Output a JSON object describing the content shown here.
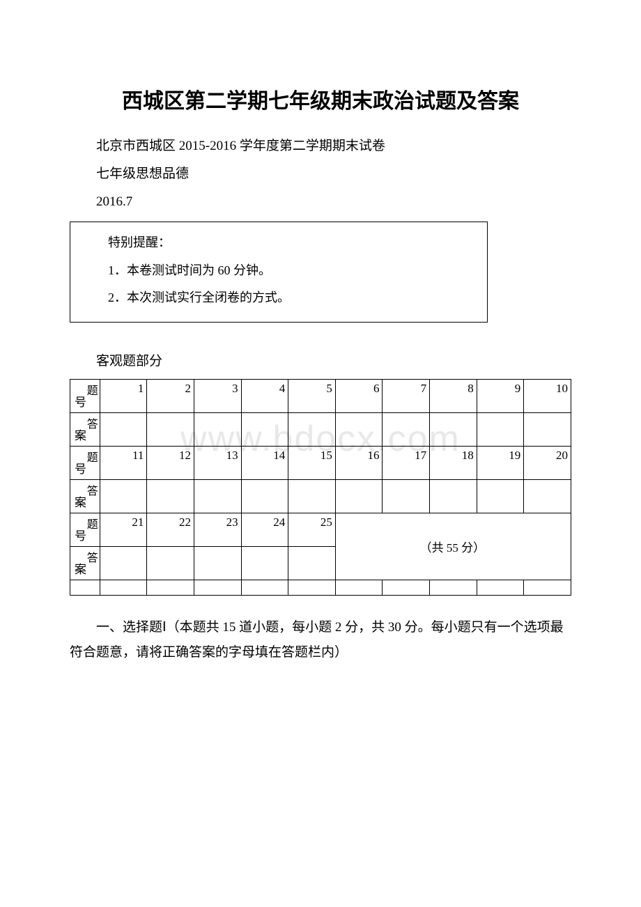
{
  "watermark": "www.bdocx.com",
  "title": "西城区第二学期七年级期末政治试题及答案",
  "subtitle": "北京市西城区 2015-2016 学年度第二学期期末试卷",
  "subject": "七年级思想品德",
  "date": "2016.7",
  "notice": {
    "header": "特别提醒：",
    "line1": "1．本卷测试时间为 60 分钟。",
    "line2": "2．本次测试实行全闭卷的方式。"
  },
  "objective_label": "客观题部分",
  "row_labels": {
    "question_top": "题",
    "question_bot": "号",
    "answer_top": "答",
    "answer_bot": "案"
  },
  "row1": [
    "1",
    "2",
    "3",
    "4",
    "5",
    "6",
    "7",
    "8",
    "9",
    "10"
  ],
  "row2": [
    "11",
    "12",
    "13",
    "14",
    "15",
    "16",
    "17",
    "18",
    "19",
    "20"
  ],
  "row3": [
    "21",
    "22",
    "23",
    "24",
    "25"
  ],
  "total_score": "（共 55 分）",
  "instructions": "一、选择题Ⅰ（本题共 15 道小题，每小题 2 分，共 30 分。每小题只有一个选项最符合题意，请将正确答案的字母填在答题栏内）"
}
